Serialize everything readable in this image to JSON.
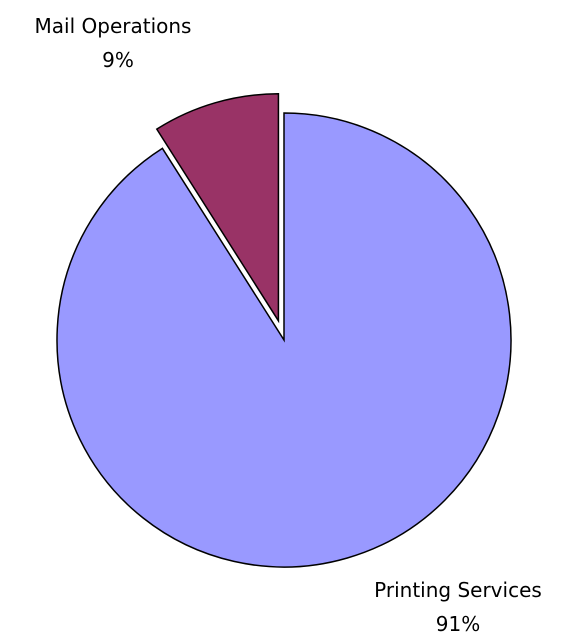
{
  "chart_data": {
    "type": "pie",
    "slices": [
      {
        "label": "Printing Services",
        "value": 91,
        "value_label": "91%",
        "color": "#9999FF",
        "exploded": false
      },
      {
        "label": "Mail Operations",
        "value": 9,
        "value_label": "9%",
        "color": "#993366",
        "exploded": true
      }
    ],
    "outline_color": "#000000",
    "background": "#FFFFFF",
    "legend": "none"
  }
}
